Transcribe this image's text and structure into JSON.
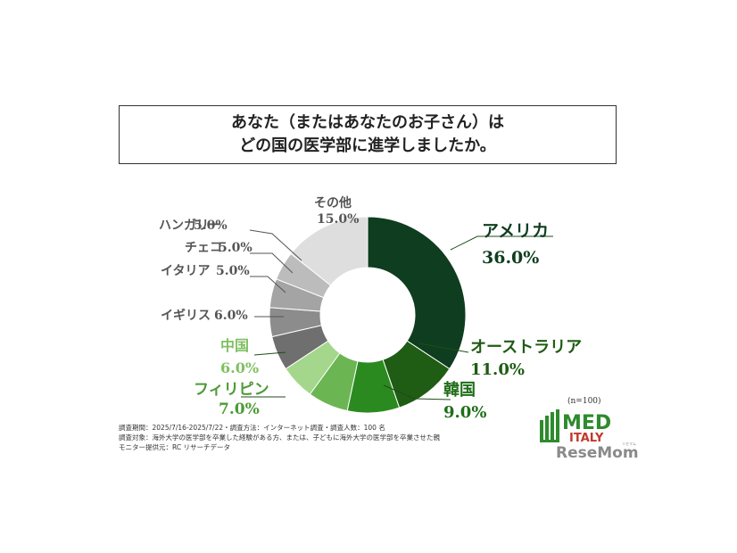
{
  "title": {
    "line1": "あなた（またはあなたのお子さん）は",
    "line2": "どの国の医学部に進学しましたか。"
  },
  "chart_data": {
    "type": "pie",
    "donut": true,
    "unit": "%",
    "slices": [
      {
        "name": "アメリカ",
        "value": 36.0,
        "label": "36.0%",
        "color": "#0f3d1f"
      },
      {
        "name": "オーストラリア",
        "value": 11.0,
        "label": "11.0%",
        "color": "#1f5c14"
      },
      {
        "name": "韓国",
        "value": 9.0,
        "label": "9.0%",
        "color": "#2b8a1f"
      },
      {
        "name": "フィリピン",
        "value": 7.0,
        "label": "7.0%",
        "color": "#6cb553"
      },
      {
        "name": "中国",
        "value": 6.0,
        "label": "6.0%",
        "color": "#a4d68c"
      },
      {
        "name": "イギリス",
        "value": 6.0,
        "label": "6.0%",
        "color": "#6f6f6f"
      },
      {
        "name": "イタリア",
        "value": 5.0,
        "label": "5.0%",
        "color": "#8c8c8c"
      },
      {
        "name": "チェコ",
        "value": 5.0,
        "label": "5.0%",
        "color": "#a4a4a4"
      },
      {
        "name": "ハンガリー",
        "value": 5.0,
        "label": "5.0%",
        "color": "#bcbcbc"
      },
      {
        "name": "その他",
        "value": 15.0,
        "label": "15.0%",
        "color": "#dedede"
      }
    ]
  },
  "sample_note": "(n=100)",
  "notes": [
    "調査期間：2025/7/16-2025/7/22・調査方法：インターネット調査・調査人数：100 名",
    "調査対象：海外大学の医学部を卒業した経験がある方、または、子どもに海外大学の医学部を卒業させた親",
    "モニター提供元：RC リサーチデータ"
  ],
  "logo": {
    "med": "MED",
    "italy": "ITALY",
    "resemom": "ReseMom",
    "ruby": "リセマム",
    "colors": {
      "green": "#2e8b2e",
      "red": "#c0392b",
      "gray": "#8a8a8a"
    }
  }
}
